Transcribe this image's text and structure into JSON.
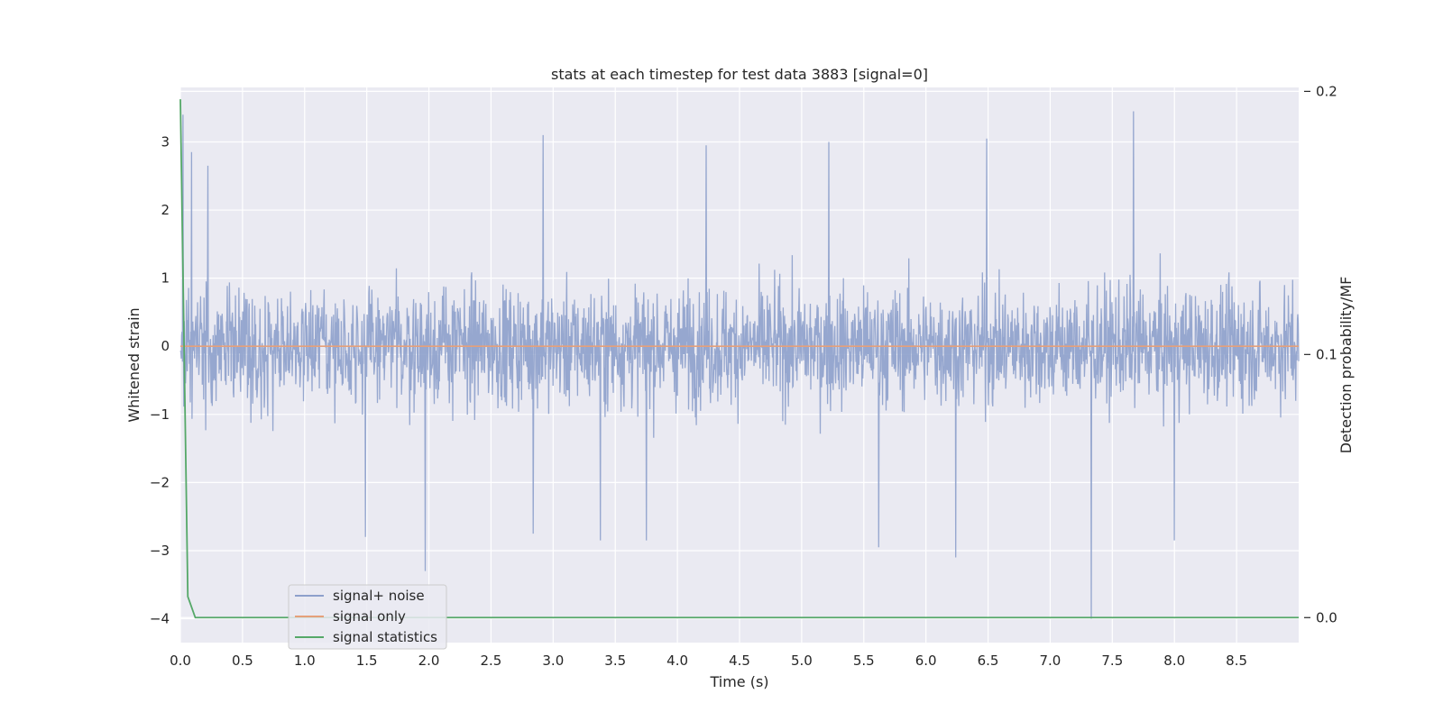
{
  "chart_data": {
    "type": "line",
    "title": "stats at each timestep for test data 3883 [signal=0]",
    "xlabel": "Time (s)",
    "ylabel": "Whitened strain",
    "y2label": "Detection probability/MF",
    "xlim": [
      0.0,
      9.0
    ],
    "ylim": [
      -4.35,
      3.8
    ],
    "y2lim": [
      -0.0095,
      0.2015
    ],
    "xticks": [
      "0.0",
      "0.5",
      "1.0",
      "1.5",
      "2.0",
      "2.5",
      "3.0",
      "3.5",
      "4.0",
      "4.5",
      "5.0",
      "5.5",
      "6.0",
      "6.5",
      "7.0",
      "7.5",
      "8.0",
      "8.5"
    ],
    "yticks": [
      "−4",
      "−3",
      "−2",
      "−1",
      "0",
      "1",
      "2",
      "3"
    ],
    "y2ticks": [
      "0.0",
      "0.1",
      "0.2"
    ],
    "grid": true,
    "legend_position": "lower-left",
    "series": [
      {
        "name": "signal+ noise",
        "color": "#8da0cb",
        "axis": "left",
        "description_values": "dense noise, roughly within [-2, 2] with spikes",
        "spikes": [
          {
            "x": 0.02,
            "y": 3.4
          },
          {
            "x": 0.09,
            "y": 2.85
          },
          {
            "x": 0.22,
            "y": 2.65
          },
          {
            "x": 2.92,
            "y": 3.1
          },
          {
            "x": 7.67,
            "y": 3.45
          },
          {
            "x": 4.23,
            "y": 2.95
          },
          {
            "x": 5.22,
            "y": 3.0
          },
          {
            "x": 6.49,
            "y": 3.05
          },
          {
            "x": 1.97,
            "y": -3.3
          },
          {
            "x": 7.33,
            "y": -4.0
          },
          {
            "x": 6.24,
            "y": -3.1
          },
          {
            "x": 1.49,
            "y": -2.8
          },
          {
            "x": 2.84,
            "y": -2.75
          },
          {
            "x": 3.38,
            "y": -2.85
          },
          {
            "x": 3.75,
            "y": -2.85
          },
          {
            "x": 5.62,
            "y": -2.95
          },
          {
            "x": 8.0,
            "y": -2.85
          }
        ]
      },
      {
        "name": "signal only",
        "color": "#e5a07a",
        "axis": "left",
        "x": [
          0.0,
          9.0
        ],
        "y": [
          0.0,
          0.0
        ]
      },
      {
        "name": "signal statistics",
        "color": "#55a868",
        "axis": "right",
        "x": [
          0.0,
          0.06,
          0.12,
          0.25,
          9.0
        ],
        "y": [
          0.197,
          0.008,
          0.0,
          0.0,
          0.0
        ]
      }
    ]
  },
  "legend": {
    "items": [
      "signal+ noise",
      "signal only",
      "signal statistics"
    ]
  }
}
